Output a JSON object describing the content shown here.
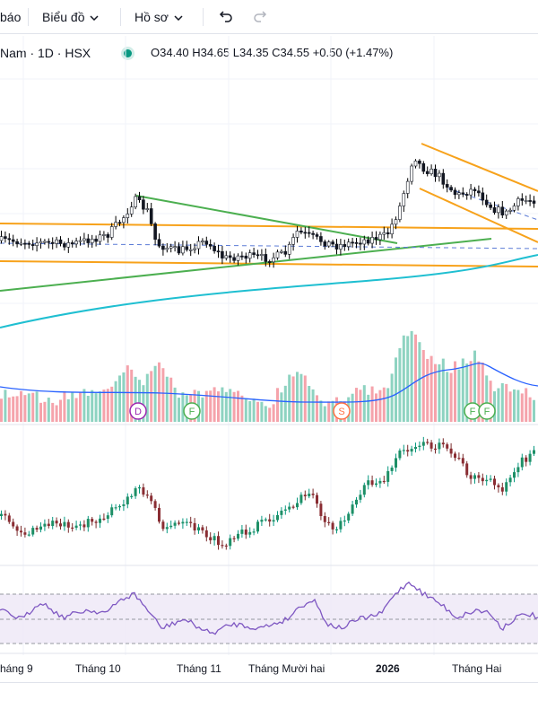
{
  "toolbar": {
    "alerts_label": "báo",
    "chart_label": "Biểu đồ",
    "profile_label": "Hồ sơ"
  },
  "legend": {
    "symbol": "Nam · 1D · HSX",
    "ohlc": "O34.40  H34.65  L34.35  C34.55  +0.50 (+1.47%)",
    "status_color": "#089981"
  },
  "colors": {
    "up": "#089981",
    "down": "#f23645",
    "trend_orange": "#f7a21b",
    "trend_green": "#4caf50",
    "ma_teal": "#1fbfd1",
    "volume_ma": "#2962ff",
    "rsi": "#7e57c2",
    "rsi_band": "#ede7f6"
  },
  "markers": [
    {
      "label": "D",
      "color": "#9c27b0"
    },
    {
      "label": "F",
      "color": "#4caf50"
    },
    {
      "label": "S",
      "color": "#ff7043"
    },
    {
      "label": "F",
      "color": "#4caf50"
    },
    {
      "label": "F",
      "color": "#4caf50"
    }
  ],
  "x_axis": {
    "labels": [
      "háng 9",
      "Tháng 10",
      "Tháng 11",
      "Tháng Mười hai",
      "2026",
      "Tháng Hai"
    ]
  }
}
